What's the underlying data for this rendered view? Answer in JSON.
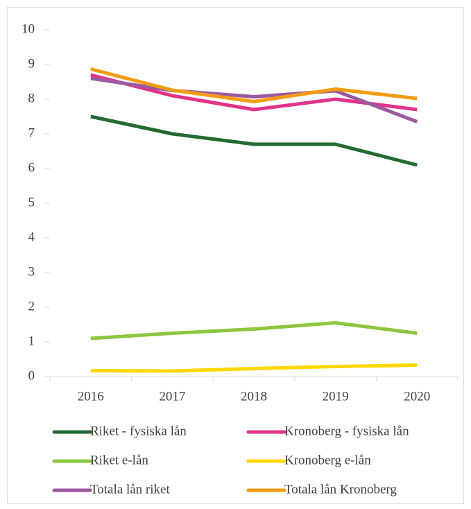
{
  "chart_data": {
    "type": "line",
    "categories": [
      "2016",
      "2017",
      "2018",
      "2019",
      "2020"
    ],
    "series": [
      {
        "name": "Riket - fysiska lån",
        "color": "#236b30",
        "values": [
          7.5,
          7.0,
          6.7,
          6.7,
          6.1
        ]
      },
      {
        "name": "Kronoberg - fysiska lån",
        "color": "#e0338a",
        "values": [
          8.7,
          8.1,
          7.7,
          8.0,
          7.7
        ]
      },
      {
        "name": "Riket e-lån",
        "color": "#8dc63f",
        "values": [
          1.1,
          1.25,
          1.37,
          1.55,
          1.25
        ]
      },
      {
        "name": "Kronoberg e-lån",
        "color": "#ffd700",
        "values": [
          0.17,
          0.16,
          0.23,
          0.29,
          0.33
        ]
      },
      {
        "name": "Totala lån riket",
        "color": "#9b59a0",
        "values": [
          8.6,
          8.25,
          8.07,
          8.24,
          7.35
        ]
      },
      {
        "name": "Totala lån Kronoberg",
        "color": "#f39c12",
        "values": [
          8.87,
          8.26,
          7.93,
          8.29,
          8.02
        ]
      }
    ],
    "ylim": [
      0,
      10
    ],
    "yticks": [
      0,
      1,
      2,
      3,
      4,
      5,
      6,
      7,
      8,
      9,
      10
    ],
    "grid": false
  }
}
